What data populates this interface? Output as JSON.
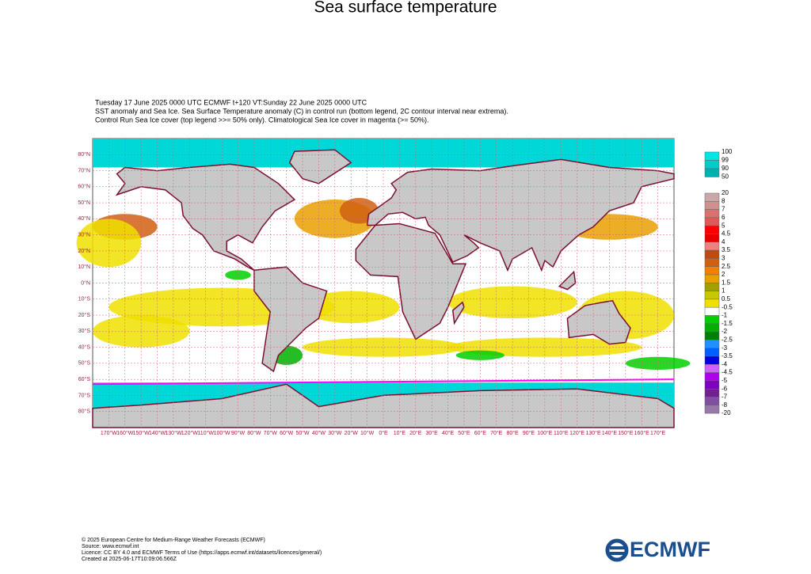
{
  "title": "Sea surface temperature",
  "header": [
    "Tuesday 17 June 2025 0000 UTC  ECMWF  t+120  VT:Sunday 22 June 2025 0000 UTC",
    "SST anomaly and Sea Ice. Sea Surface Temperature anomaly (C) in control run (bottom legend, 2C contour interval near extrema).",
    "Control Run Sea Ice cover (top legend >>= 50% only). Climatological Sea Ice cover in magenta (>= 50%)."
  ],
  "map": {
    "lat_labels": [
      "80°N",
      "70°N",
      "60°N",
      "50°N",
      "40°N",
      "30°N",
      "20°N",
      "10°N",
      "0°N",
      "10°S",
      "20°S",
      "30°S",
      "40°S",
      "50°S",
      "60°S",
      "70°S",
      "80°S"
    ],
    "lon_labels": [
      "170°W",
      "160°W",
      "150°W",
      "140°W",
      "130°W",
      "120°W",
      "110°W",
      "100°W",
      "90°W",
      "80°W",
      "70°W",
      "60°W",
      "50°W",
      "40°W",
      "30°W",
      "20°W",
      "10°W",
      "0°E",
      "10°E",
      "20°E",
      "30°E",
      "40°E",
      "50°E",
      "60°E",
      "70°E",
      "80°E",
      "90°E",
      "100°E",
      "110°E",
      "120°E",
      "130°E",
      "140°E",
      "150°E",
      "160°E",
      "170°E"
    ]
  },
  "ice_legend": {
    "labels": [
      "100",
      "99",
      "90",
      "50"
    ],
    "colors": [
      "#00e6e6",
      "#00cccc",
      "#00b0b0"
    ]
  },
  "sst_legend": {
    "labels": [
      "20",
      "8",
      "7",
      "6",
      "5",
      "4.5",
      "4",
      "3.5",
      "3",
      "2.5",
      "2",
      "1.5",
      "1",
      "0.5",
      "-0.5",
      "-1",
      "-1.5",
      "-2",
      "-2.5",
      "-3",
      "-3.5",
      "-4",
      "-4.5",
      "-5",
      "-6",
      "-7",
      "-8",
      "-20"
    ],
    "colors": [
      "#c8a8a8",
      "#d09090",
      "#dc7070",
      "#e05858",
      "#ff0000",
      "#e80000",
      "#f08080",
      "#c04a10",
      "#d06010",
      "#f08000",
      "#e8a000",
      "#a0a000",
      "#c8c800",
      "#f0e000",
      "#ffffff",
      "#00d000",
      "#00b000",
      "#008000",
      "#1e90ff",
      "#0060ff",
      "#0000e0",
      "#d060ff",
      "#b000f0",
      "#8000c0",
      "#702090",
      "#8050a0",
      "#9878a8"
    ]
  },
  "footer": [
    "© 2025 European Centre for Medium-Range Weather Forecasts (ECMWF)",
    "Source: www.ecmwf.int",
    "Licence: CC BY 4.0 and ECMWF Terms of Use (https://apps.ecmwf.int/datasets/licences/general/)",
    "Created at 2025-06-17T10:09:06.566Z"
  ],
  "logo": "ECMWF"
}
